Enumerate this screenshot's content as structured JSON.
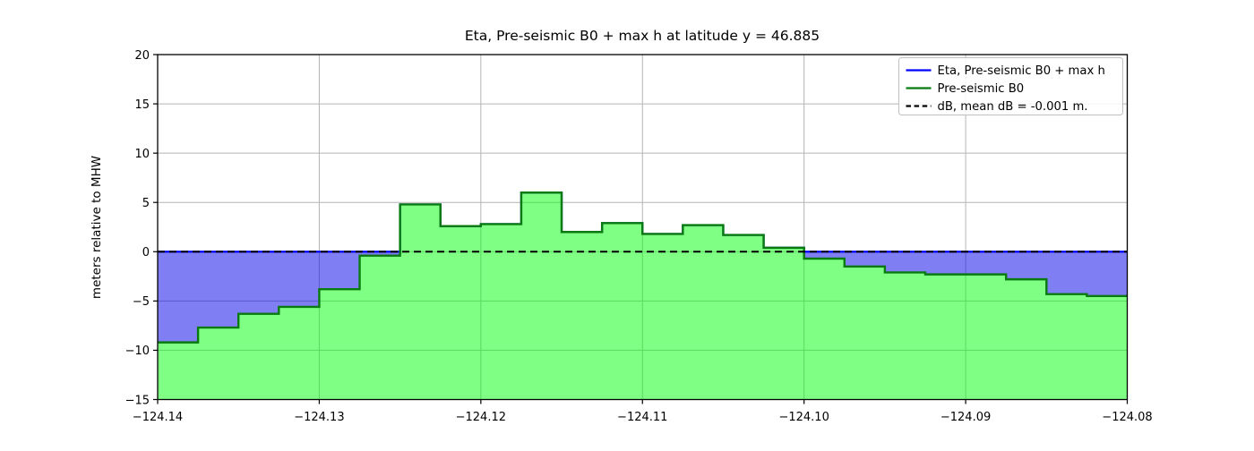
{
  "figure": {
    "title": "Eta, Pre-seismic B0 + max h at latitude y = 46.885",
    "ylabel": "meters relative to MHW"
  },
  "chart_data": {
    "type": "area",
    "title": "Eta, Pre-seismic B0 + max h at latitude y = 46.885",
    "xlabel": "",
    "ylabel": "meters relative to MHW",
    "xlim": [
      -124.14,
      -124.08
    ],
    "ylim": [
      -15,
      20
    ],
    "xtick_values": [
      -124.14,
      -124.13,
      -124.12,
      -124.11,
      -124.1,
      -124.09,
      -124.08
    ],
    "xtick_labels": [
      "−124.14",
      "−124.13",
      "−124.12",
      "−124.11",
      "−124.10",
      "−124.09",
      "−124.08"
    ],
    "ytick_values": [
      -15,
      -10,
      -5,
      0,
      5,
      10,
      15,
      20
    ],
    "ytick_labels": [
      "−15",
      "−10",
      "−5",
      "0",
      "5",
      "10",
      "15",
      "20"
    ],
    "grid": true,
    "legend_position": "upper right",
    "x_start": -124.14,
    "x_step": 0.0025,
    "b0_step_values": [
      -9.2,
      -7.7,
      -6.3,
      -5.6,
      -3.8,
      -0.4,
      4.8,
      2.6,
      2.8,
      6.0,
      2.0,
      2.9,
      1.8,
      2.7,
      1.7,
      0.4,
      -0.7,
      -1.5,
      -2.1,
      -2.3,
      -2.3,
      -2.8,
      -4.3,
      -4.5
    ],
    "eta_level": 0,
    "db_level": -0.001,
    "series": [
      {
        "name": "Eta, Pre-seismic B0 + max h",
        "style": "solid",
        "color": "#0000ff"
      },
      {
        "name": "Pre-seismic B0",
        "style": "solid",
        "color": "#087a10"
      },
      {
        "name": "dB, mean dB = -0.001 m.",
        "style": "dashed",
        "color": "#000000"
      }
    ],
    "colors": {
      "water_fill": "#0000e8",
      "land_fill": "#00ff0a",
      "fill_alpha": 0.5,
      "eta_line": "#0000ff",
      "b0_line": "#087a10",
      "db_line": "#000000",
      "grid": "#b4b4b4",
      "axis": "#000000"
    }
  },
  "legend": {
    "entries": [
      {
        "label": "Eta, Pre-seismic B0 + max h",
        "color": "#0000ff",
        "dashed": false
      },
      {
        "label": "Pre-seismic B0",
        "color": "#087a10",
        "dashed": false
      },
      {
        "label": "dB, mean dB = -0.001 m.",
        "color": "#000000",
        "dashed": true
      }
    ]
  }
}
